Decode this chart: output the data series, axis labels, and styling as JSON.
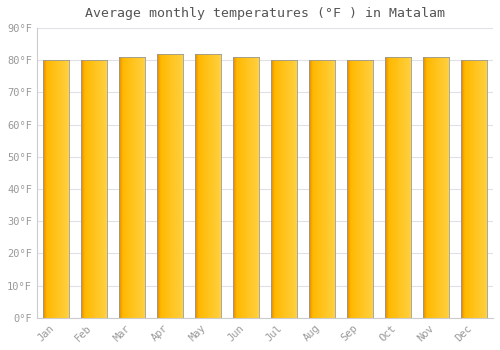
{
  "title": "Average monthly temperatures (°F ) in Matalam",
  "months": [
    "Jan",
    "Feb",
    "Mar",
    "Apr",
    "May",
    "Jun",
    "Jul",
    "Aug",
    "Sep",
    "Oct",
    "Nov",
    "Dec"
  ],
  "values": [
    80,
    80,
    81,
    82,
    82,
    81,
    80,
    80,
    80,
    81,
    81,
    80
  ],
  "bar_color_left": "#E08000",
  "bar_color_mid": "#FFB800",
  "bar_color_right": "#FFD040",
  "bar_edge_color": "#999999",
  "background_color": "#FFFFFF",
  "plot_bg_color": "#FFFFFF",
  "grid_color": "#E0E0E8",
  "tick_label_color": "#999999",
  "title_color": "#555555",
  "ylim": [
    0,
    90
  ],
  "yticks": [
    0,
    10,
    20,
    30,
    40,
    50,
    60,
    70,
    80,
    90
  ],
  "ytick_labels": [
    "0°F",
    "10°F",
    "20°F",
    "30°F",
    "40°F",
    "50°F",
    "60°F",
    "70°F",
    "80°F",
    "90°F"
  ],
  "figsize": [
    5.0,
    3.5
  ],
  "dpi": 100
}
